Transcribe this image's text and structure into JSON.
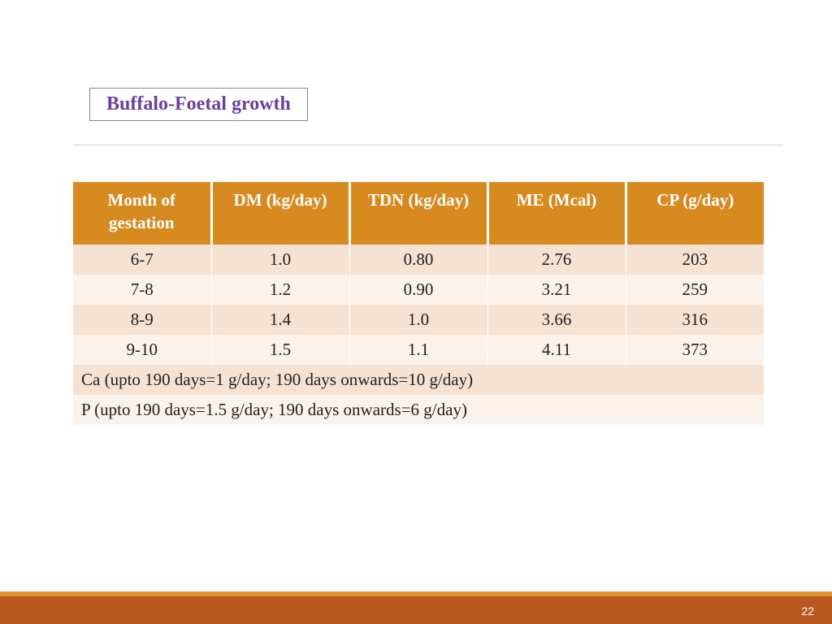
{
  "title": "Buffalo-Foetal growth",
  "title_color": "#6a3fa0",
  "table": {
    "header_bg": "#d78a1f",
    "header_fg": "#ffffff",
    "row_band_dark": "#f6e2d3",
    "row_band_light": "#fbf2ec",
    "columns": [
      "Month of gestation",
      "DM (kg/day)",
      "TDN (kg/day)",
      "ME (Mcal)",
      "CP (g/day)"
    ],
    "rows": [
      [
        "6-7",
        "1.0",
        "0.80",
        "2.76",
        "203"
      ],
      [
        "7-8",
        "1.2",
        "0.90",
        "3.21",
        "259"
      ],
      [
        "8-9",
        "1.4",
        "1.0",
        "3.66",
        "316"
      ],
      [
        "9-10",
        "1.5",
        "1.1",
        "4.11",
        "373"
      ]
    ],
    "notes": [
      "Ca (upto 190 days=1 g/day; 190 days onwards=10 g/day)",
      "P (upto 190 days=1.5 g/day; 190 days onwards=6 g/day)"
    ]
  },
  "footer": {
    "bar_color": "#b85a1f",
    "stripe_color": "#e0942d",
    "page_number": "22"
  }
}
